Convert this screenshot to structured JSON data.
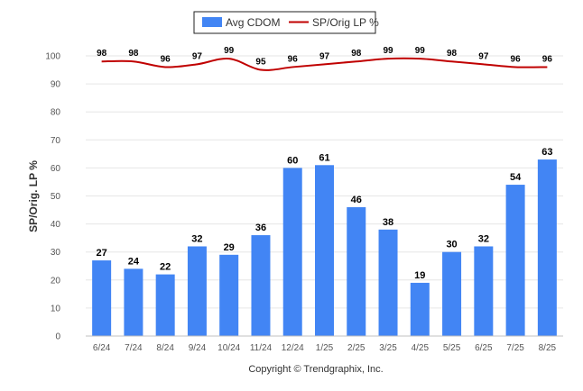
{
  "chart_data": {
    "type": "bar",
    "categories": [
      "6/24",
      "7/24",
      "8/24",
      "9/24",
      "10/24",
      "11/24",
      "12/24",
      "1/25",
      "2/25",
      "3/25",
      "4/25",
      "5/25",
      "6/25",
      "7/25",
      "8/25"
    ],
    "series": [
      {
        "name": "Avg CDOM",
        "type": "bar",
        "color": "#4285f4",
        "values": [
          27,
          24,
          22,
          32,
          29,
          36,
          60,
          61,
          46,
          38,
          19,
          30,
          32,
          54,
          63
        ]
      },
      {
        "name": "SP/Orig LP %",
        "type": "line",
        "color": "#c00000",
        "values": [
          98,
          98,
          96,
          97,
          99,
          95,
          96,
          97,
          98,
          99,
          99,
          98,
          97,
          96,
          96
        ]
      }
    ],
    "ylabel": "SP/Orig. LP %",
    "ylim": [
      0,
      100
    ],
    "yticks": [
      "0",
      "10",
      "20",
      "30",
      "40",
      "50",
      "60",
      "70",
      "80",
      "90",
      "100"
    ],
    "grid": true,
    "legend_position": "top-center"
  },
  "footer": {
    "copyright": "Copyright © Trendgraphix, Inc."
  },
  "colors": {
    "bar": "#4285f4",
    "line": "#c00000",
    "grid": "#e6e6e6",
    "axis": "#c0c0c0"
  }
}
